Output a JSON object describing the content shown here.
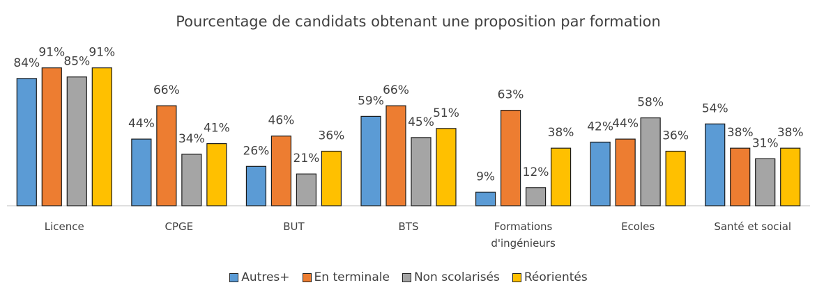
{
  "chart_data": {
    "type": "bar",
    "title": "Pourcentage de candidats obtenant une proposition par formation",
    "categories": [
      "Licence",
      "CPGE",
      "BUT",
      "BTS",
      "Formations d'ingénieurs",
      "Ecoles",
      "Santé et social"
    ],
    "series": [
      {
        "name": "Autres+",
        "color": "#5b9bd5",
        "values": [
          84,
          44,
          26,
          59,
          9,
          42,
          54
        ],
        "value_labels": [
          "84%",
          "44%",
          "26%",
          "59%",
          "9%",
          "42%",
          "54%"
        ]
      },
      {
        "name": "En terminale",
        "color": "#ed7d31",
        "values": [
          91,
          66,
          46,
          66,
          63,
          44,
          38
        ],
        "value_labels": [
          "91%",
          "66%",
          "46%",
          "66%",
          "63%",
          "44%",
          "38%"
        ]
      },
      {
        "name": "Non scolarisés",
        "color": "#a5a5a5",
        "values": [
          85,
          34,
          21,
          45,
          12,
          58,
          31
        ],
        "value_labels": [
          "85%",
          "34%",
          "21%",
          "45%",
          "12%",
          "58%",
          "31%"
        ]
      },
      {
        "name": "Réorientés",
        "color": "#ffc000",
        "values": [
          91,
          41,
          36,
          51,
          38,
          36,
          38
        ],
        "value_labels": [
          "91%",
          "41%",
          "36%",
          "51%",
          "38%",
          "36%",
          "38%"
        ]
      }
    ],
    "legend": "bottom"
  }
}
